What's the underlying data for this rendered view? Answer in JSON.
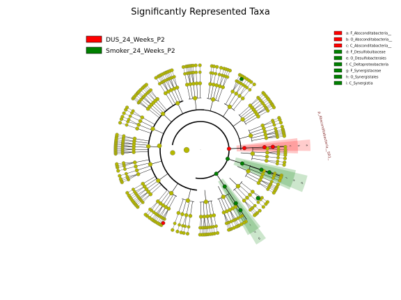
{
  "chart_data": {
    "type": "cladogram",
    "title": "Significantly Represented Taxa",
    "groups": [
      {
        "name": "DUS_24_Weeks_P2",
        "color": "#ff0000"
      },
      {
        "name": "Smoker_24_Weeks_P2",
        "color": "#008000"
      }
    ],
    "taxa": [
      {
        "letter": "a",
        "label": "a: F_Absconditabacteria__",
        "group": 0
      },
      {
        "letter": "b",
        "label": "b: O_Absconditabacteria__",
        "group": 0
      },
      {
        "letter": "c",
        "label": "c: C_Absconditabacteria__",
        "group": 0
      },
      {
        "letter": "d",
        "label": "d: F_Desulfobulbaceae",
        "group": 1
      },
      {
        "letter": "e",
        "label": "e: O_Desulfobacterales",
        "group": 1
      },
      {
        "letter": "f",
        "label": "f: C_Deltaproteobacteria",
        "group": 1
      },
      {
        "letter": "g",
        "label": "g: F_Synergistaceae",
        "group": 1
      },
      {
        "letter": "h",
        "label": "h: O_Synergistales",
        "group": 1
      },
      {
        "letter": "i",
        "label": "i: C_Synergistia",
        "group": 1
      }
    ],
    "highlighted_clades": [
      {
        "group": 0,
        "start_angle": -7,
        "end_angle": 2,
        "letters": [
          "c",
          "b",
          "a"
        ],
        "rotated_label": "p_Absconditabacteria__SR1_"
      },
      {
        "group": 1,
        "start_angle": 12,
        "end_angle": 24,
        "letters": [
          "f",
          "e",
          "d"
        ]
      },
      {
        "group": 1,
        "start_angle": 52,
        "end_angle": 61,
        "letters": [
          "i",
          "h",
          "g"
        ]
      }
    ],
    "default_node_color": "#b5b800",
    "center_dot_label": "."
  }
}
